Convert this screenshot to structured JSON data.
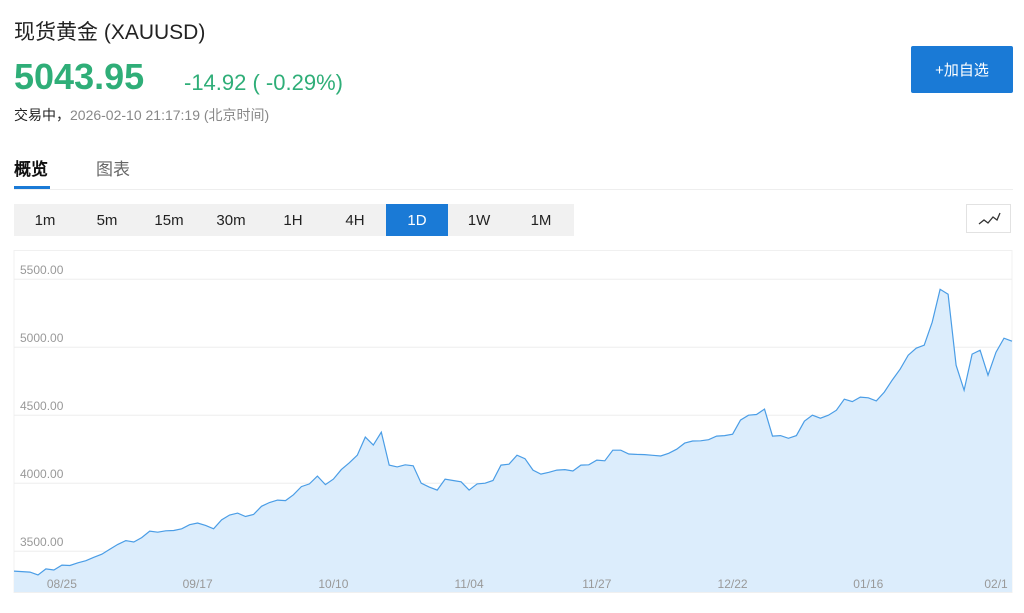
{
  "header": {
    "title": "现货黄金 (XAUUSD)",
    "price": "5043.95",
    "change": "-14.92 ( -0.29%)",
    "status": "交易中，",
    "time": "2026-02-10 21:17:19 (北京时间)",
    "button": "+加自选"
  },
  "tabs": {
    "items": [
      "概览",
      "图表"
    ],
    "active": 0
  },
  "periods": {
    "items": [
      "1m",
      "5m",
      "15m",
      "30m",
      "1H",
      "4H",
      "1D",
      "1W",
      "1M"
    ],
    "active": 6
  },
  "chart_data": {
    "type": "area",
    "color": "#4a9de6",
    "fill": "#dcedfc",
    "grid": true,
    "ylim": [
      3200,
      5700
    ],
    "yticks": [
      {
        "value": 3500,
        "label": "3500.00"
      },
      {
        "value": 4000,
        "label": "4000.00"
      },
      {
        "value": 4500,
        "label": "4500.00"
      },
      {
        "value": 5000,
        "label": "5000.00"
      },
      {
        "value": 5500,
        "label": "5500.00"
      }
    ],
    "categories": [
      null,
      null,
      null,
      null,
      null,
      null,
      "08/25",
      null,
      null,
      null,
      null,
      null,
      null,
      null,
      null,
      null,
      null,
      null,
      null,
      null,
      null,
      null,
      null,
      "09/17",
      null,
      null,
      null,
      null,
      null,
      null,
      null,
      null,
      null,
      null,
      null,
      null,
      null,
      null,
      null,
      null,
      "10/10",
      null,
      null,
      null,
      null,
      null,
      null,
      null,
      null,
      null,
      null,
      null,
      null,
      null,
      null,
      null,
      null,
      "11/04",
      null,
      null,
      null,
      null,
      null,
      null,
      null,
      null,
      null,
      null,
      null,
      null,
      null,
      null,
      null,
      "11/27",
      null,
      null,
      null,
      null,
      null,
      null,
      null,
      null,
      null,
      null,
      null,
      null,
      null,
      null,
      null,
      null,
      "12/22",
      null,
      null,
      null,
      null,
      null,
      null,
      null,
      null,
      null,
      null,
      null,
      null,
      null,
      null,
      null,
      null,
      "01/16",
      null,
      null,
      null,
      null,
      null,
      null,
      null,
      null,
      null,
      null,
      null,
      null,
      null,
      null,
      null,
      "02/1",
      null,
      null
    ],
    "values": [
      3354,
      3350,
      3346,
      3325,
      3370,
      3362,
      3398,
      3395,
      3415,
      3430,
      3455,
      3478,
      3515,
      3550,
      3578,
      3568,
      3600,
      3648,
      3640,
      3650,
      3652,
      3665,
      3695,
      3707,
      3690,
      3665,
      3730,
      3766,
      3780,
      3755,
      3770,
      3830,
      3858,
      3876,
      3872,
      3915,
      3975,
      3995,
      4052,
      3990,
      4030,
      4100,
      4150,
      4206,
      4339,
      4280,
      4375,
      4133,
      4120,
      4135,
      4128,
      4000,
      3971,
      3949,
      4030,
      4020,
      4010,
      3949,
      3995,
      4000,
      4020,
      4133,
      4140,
      4206,
      4180,
      4096,
      4067,
      4080,
      4096,
      4100,
      4090,
      4133,
      4135,
      4170,
      4165,
      4243,
      4243,
      4215,
      4212,
      4210,
      4205,
      4200,
      4220,
      4250,
      4295,
      4310,
      4312,
      4320,
      4346,
      4350,
      4360,
      4464,
      4500,
      4505,
      4545,
      4346,
      4350,
      4330,
      4350,
      4456,
      4500,
      4478,
      4500,
      4537,
      4618,
      4600,
      4633,
      4628,
      4605,
      4670,
      4758,
      4839,
      4941,
      4993,
      5015,
      5184,
      5426,
      5390,
      4868,
      4684,
      4949,
      4978,
      4794,
      4963,
      5066,
      5044
    ]
  }
}
